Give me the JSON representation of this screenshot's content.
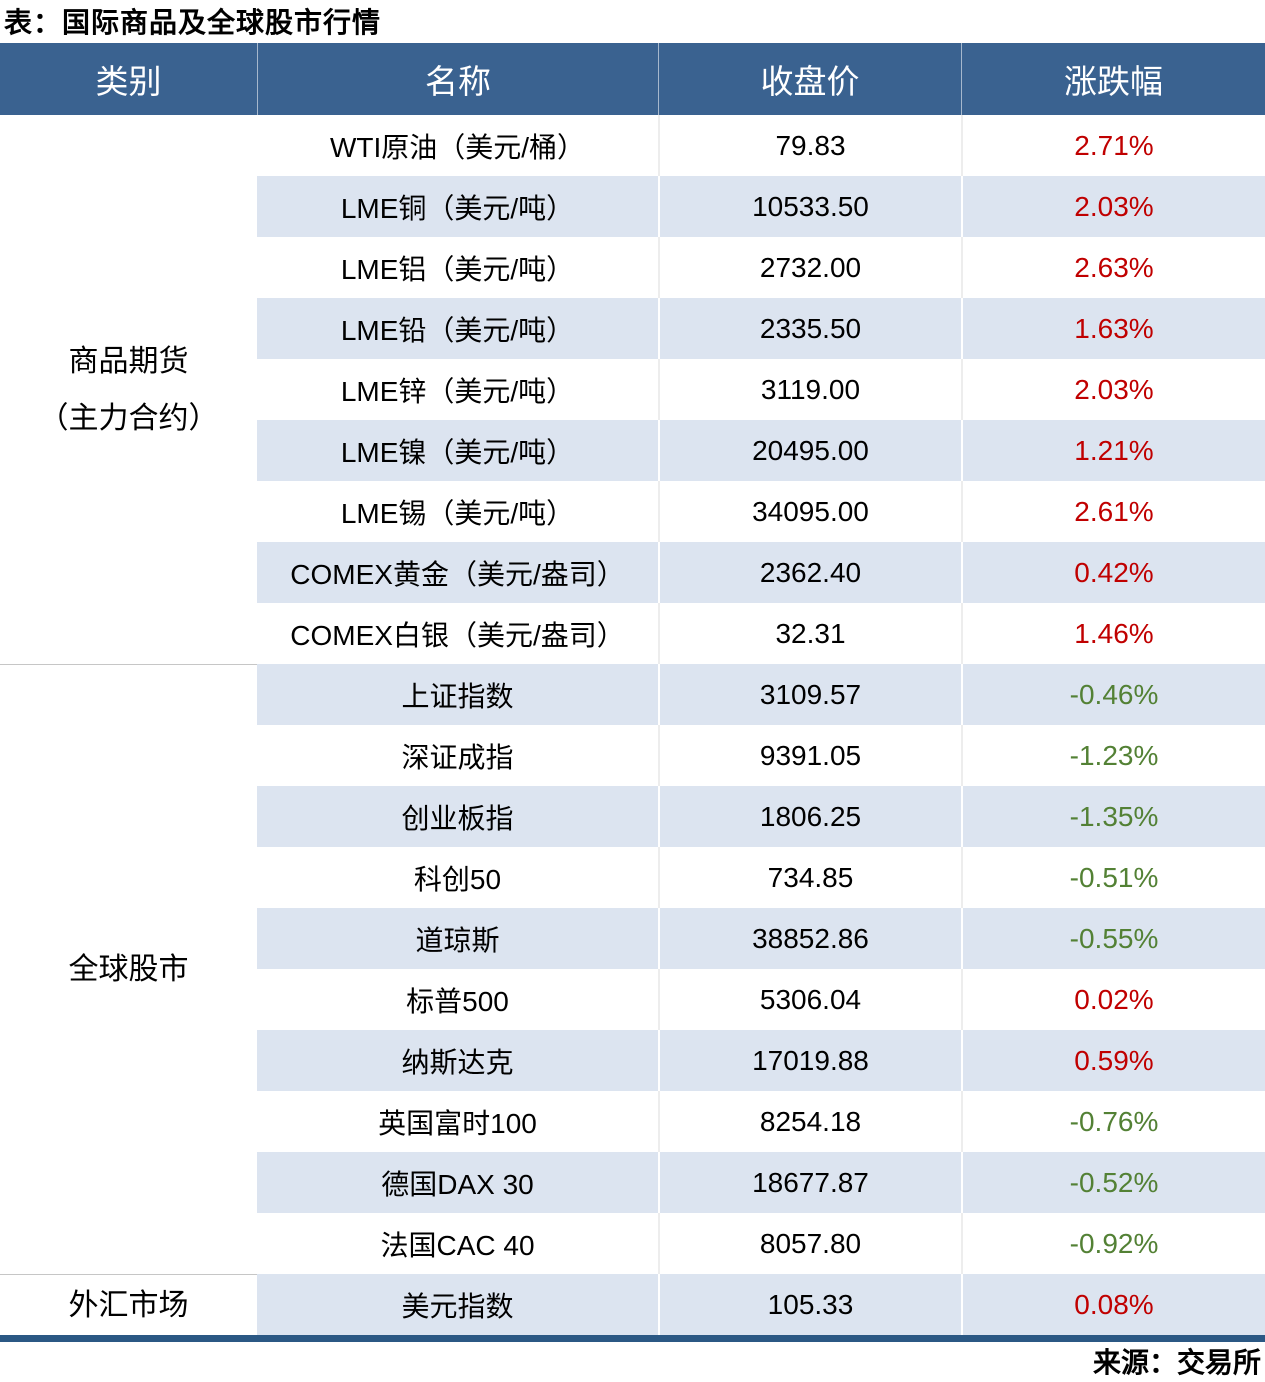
{
  "title": "表：国际商品及全球股市行情",
  "source": "来源：交易所",
  "colors": {
    "header_bg": "#3a6290",
    "stripe": "#dce4f0",
    "bottom_bar": "#2b5884",
    "up_color": "#c00000",
    "down_color": "#538135"
  },
  "table": {
    "headers": [
      "类别",
      "名称",
      "收盘价",
      "涨跌幅"
    ],
    "sections": [
      {
        "category_lines": [
          "商品期货",
          "（主力合约）"
        ],
        "rows": [
          {
            "name": "WTI原油（美元/桶）",
            "close": "79.83",
            "change": "2.71%",
            "trend": "up"
          },
          {
            "name": "LME铜（美元/吨）",
            "close": "10533.50",
            "change": "2.03%",
            "trend": "up"
          },
          {
            "name": "LME铝（美元/吨）",
            "close": "2732.00",
            "change": "2.63%",
            "trend": "up"
          },
          {
            "name": "LME铅（美元/吨）",
            "close": "2335.50",
            "change": "1.63%",
            "trend": "up"
          },
          {
            "name": "LME锌（美元/吨）",
            "close": "3119.00",
            "change": "2.03%",
            "trend": "up"
          },
          {
            "name": "LME镍（美元/吨）",
            "close": "20495.00",
            "change": "1.21%",
            "trend": "up"
          },
          {
            "name": "LME锡（美元/吨）",
            "close": "34095.00",
            "change": "2.61%",
            "trend": "up"
          },
          {
            "name": "COMEX黄金（美元/盎司）",
            "close": "2362.40",
            "change": "0.42%",
            "trend": "up"
          },
          {
            "name": "COMEX白银（美元/盎司）",
            "close": "32.31",
            "change": "1.46%",
            "trend": "up"
          }
        ]
      },
      {
        "category_lines": [
          "全球股市"
        ],
        "rows": [
          {
            "name": "上证指数",
            "close": "3109.57",
            "change": "-0.46%",
            "trend": "down"
          },
          {
            "name": "深证成指",
            "close": "9391.05",
            "change": "-1.23%",
            "trend": "down"
          },
          {
            "name": "创业板指",
            "close": "1806.25",
            "change": "-1.35%",
            "trend": "down"
          },
          {
            "name": "科创50",
            "close": "734.85",
            "change": "-0.51%",
            "trend": "down"
          },
          {
            "name": "道琼斯",
            "close": "38852.86",
            "change": "-0.55%",
            "trend": "down"
          },
          {
            "name": "标普500",
            "close": "5306.04",
            "change": "0.02%",
            "trend": "up"
          },
          {
            "name": "纳斯达克",
            "close": "17019.88",
            "change": "0.59%",
            "trend": "up"
          },
          {
            "name": "英国富时100",
            "close": "8254.18",
            "change": "-0.76%",
            "trend": "down"
          },
          {
            "name": "德国DAX 30",
            "close": "18677.87",
            "change": "-0.52%",
            "trend": "down"
          },
          {
            "name": "法国CAC 40",
            "close": "8057.80",
            "change": "-0.92%",
            "trend": "down"
          }
        ]
      },
      {
        "category_lines": [
          "外汇市场"
        ],
        "rows": [
          {
            "name": "美元指数",
            "close": "105.33",
            "change": "0.08%",
            "trend": "up"
          }
        ]
      }
    ]
  },
  "chart_data": {
    "type": "table",
    "title": "表：国际商品及全球股市行情",
    "columns": [
      "类别",
      "名称",
      "收盘价",
      "涨跌幅"
    ],
    "rows": [
      [
        "商品期货（主力合约）",
        "WTI原油（美元/桶）",
        79.83,
        "2.71%"
      ],
      [
        "商品期货（主力合约）",
        "LME铜（美元/吨）",
        10533.5,
        "2.03%"
      ],
      [
        "商品期货（主力合约）",
        "LME铝（美元/吨）",
        2732.0,
        "2.63%"
      ],
      [
        "商品期货（主力合约）",
        "LME铅（美元/吨）",
        2335.5,
        "1.63%"
      ],
      [
        "商品期货（主力合约）",
        "LME锌（美元/吨）",
        3119.0,
        "2.03%"
      ],
      [
        "商品期货（主力合约）",
        "LME镍（美元/吨）",
        20495.0,
        "1.21%"
      ],
      [
        "商品期货（主力合约）",
        "LME锡（美元/吨）",
        34095.0,
        "2.61%"
      ],
      [
        "商品期货（主力合约）",
        "COMEX黄金（美元/盎司）",
        2362.4,
        "0.42%"
      ],
      [
        "商品期货（主力合约）",
        "COMEX白银（美元/盎司）",
        32.31,
        "1.46%"
      ],
      [
        "全球股市",
        "上证指数",
        3109.57,
        "-0.46%"
      ],
      [
        "全球股市",
        "深证成指",
        9391.05,
        "-1.23%"
      ],
      [
        "全球股市",
        "创业板指",
        1806.25,
        "-1.35%"
      ],
      [
        "全球股市",
        "科创50",
        734.85,
        "-0.51%"
      ],
      [
        "全球股市",
        "道琼斯",
        38852.86,
        "-0.55%"
      ],
      [
        "全球股市",
        "标普500",
        5306.04,
        "0.02%"
      ],
      [
        "全球股市",
        "纳斯达克",
        17019.88,
        "0.59%"
      ],
      [
        "全球股市",
        "英国富时100",
        8254.18,
        "-0.76%"
      ],
      [
        "全球股市",
        "德国DAX 30",
        18677.87,
        "-0.52%"
      ],
      [
        "全球股市",
        "法国CAC 40",
        8057.8,
        "-0.92%"
      ],
      [
        "外汇市场",
        "美元指数",
        105.33,
        "0.08%"
      ]
    ],
    "source": "来源：交易所",
    "value_colors": {
      "positive": "#c00000",
      "negative": "#538135"
    }
  }
}
